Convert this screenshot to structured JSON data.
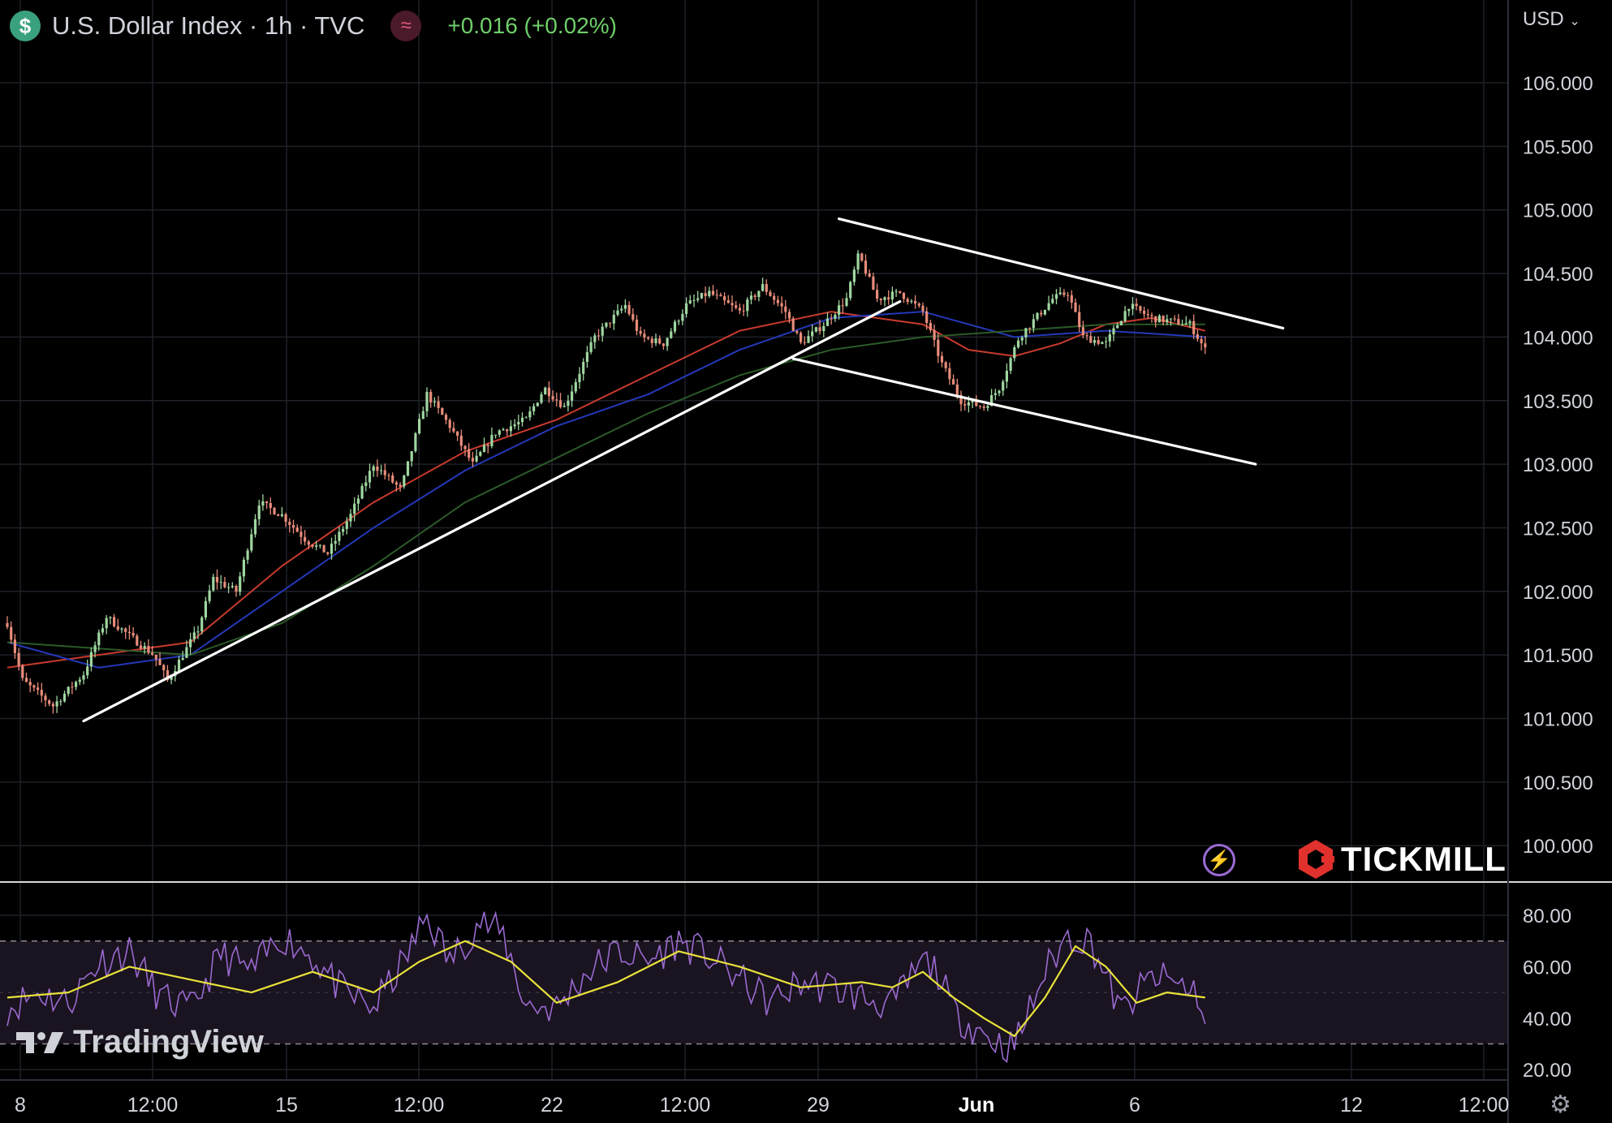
{
  "header": {
    "currency_icon": "dollar-coin-icon",
    "symbol_title": "U.S. Dollar Index · 1h · TVC",
    "indicator_icon": "wave-indicator-icon",
    "change": "+0.016 (+0.02%)"
  },
  "currency_selector": "USD",
  "colors": {
    "up": "#9fd6a0",
    "down": "#e88c7a",
    "ema_red": "#c83a2e",
    "ema_blue": "#2438b8",
    "ema_green": "#2b5a28",
    "rsi": "#9a6ad0",
    "rsi_ma": "#e8e23a",
    "change": "#6fcf6a"
  },
  "watermarks": {
    "broker": "TICKMILL",
    "platform": "TradingView"
  },
  "chart_data": {
    "type": "candlestick",
    "title": "U.S. Dollar Index · 1h · TVC",
    "x_ticks": [
      "8",
      "12:00",
      "15",
      "12:00",
      "22",
      "12:00",
      "29",
      "Jun",
      "6",
      "12",
      "12:00"
    ],
    "y_ticks": [
      "106.000",
      "105.500",
      "105.000",
      "104.500",
      "104.000",
      "103.500",
      "103.000",
      "102.500",
      "102.000",
      "101.500",
      "101.000",
      "100.500",
      "100.000"
    ],
    "ylim": [
      99.9,
      106.4
    ],
    "grid": true,
    "price_path": [
      [
        0,
        101.75
      ],
      [
        1,
        101.3
      ],
      [
        3,
        101.1
      ],
      [
        5,
        101.35
      ],
      [
        6.5,
        101.8
      ],
      [
        8,
        101.65
      ],
      [
        9.6,
        101.5
      ],
      [
        10.5,
        101.3
      ],
      [
        12.5,
        101.7
      ],
      [
        13.5,
        102.1
      ],
      [
        15,
        102.0
      ],
      [
        16.5,
        102.7
      ],
      [
        18,
        102.6
      ],
      [
        19.6,
        102.4
      ],
      [
        21,
        102.3
      ],
      [
        22.5,
        102.6
      ],
      [
        24,
        103.0
      ],
      [
        25.8,
        102.8
      ],
      [
        27.5,
        103.55
      ],
      [
        29,
        103.3
      ],
      [
        30.5,
        103.0
      ],
      [
        32,
        103.25
      ],
      [
        34,
        103.35
      ],
      [
        35.2,
        103.6
      ],
      [
        36.5,
        103.45
      ],
      [
        38.5,
        104.0
      ],
      [
        40.5,
        104.25
      ],
      [
        41.5,
        104.0
      ],
      [
        43,
        103.95
      ],
      [
        44.5,
        104.25
      ],
      [
        46,
        104.35
      ],
      [
        48,
        104.2
      ],
      [
        49.5,
        104.4
      ],
      [
        51,
        104.2
      ],
      [
        52,
        103.95
      ],
      [
        53.5,
        104.1
      ],
      [
        55,
        104.3
      ],
      [
        55.8,
        104.65
      ],
      [
        57,
        104.3
      ],
      [
        58.5,
        104.35
      ],
      [
        60,
        104.2
      ],
      [
        61.2,
        103.8
      ],
      [
        62.5,
        103.5
      ],
      [
        64,
        103.45
      ],
      [
        65,
        103.6
      ],
      [
        66.3,
        104.0
      ],
      [
        68.5,
        104.3
      ],
      [
        69.5,
        104.35
      ],
      [
        70.5,
        104.0
      ],
      [
        72,
        103.95
      ],
      [
        73.5,
        104.25
      ],
      [
        75,
        104.15
      ],
      [
        77.5,
        104.1
      ],
      [
        78.5,
        103.9
      ]
    ],
    "series": [
      {
        "name": "",
        "x": [
          0,
          6,
          12,
          18,
          24,
          30,
          36,
          42,
          48,
          54,
          60,
          63,
          66,
          69,
          72,
          75,
          78.5
        ],
        "values": [
          101.4,
          101.5,
          101.6,
          102.2,
          102.7,
          103.1,
          103.35,
          103.7,
          104.05,
          104.2,
          104.1,
          103.9,
          103.85,
          103.95,
          104.1,
          104.15,
          104.05
        ]
      },
      {
        "name": "",
        "x": [
          0,
          6,
          12,
          18,
          24,
          30,
          36,
          42,
          48,
          54,
          60,
          66,
          72,
          78.5
        ],
        "values": [
          101.6,
          101.4,
          101.5,
          102.0,
          102.5,
          102.95,
          103.3,
          103.55,
          103.9,
          104.15,
          104.2,
          104.0,
          104.05,
          104.0
        ]
      },
      {
        "name": "",
        "x": [
          0,
          6,
          12,
          18,
          24,
          30,
          36,
          42,
          48,
          54,
          60,
          66,
          72,
          78.5
        ],
        "values": [
          101.6,
          101.55,
          101.5,
          101.75,
          102.2,
          102.7,
          103.05,
          103.4,
          103.7,
          103.9,
          104.0,
          104.05,
          104.1,
          104.1
        ]
      }
    ],
    "trendlines": [
      {
        "from": [
          5,
          100.98
        ],
        "to": [
          58.5,
          104.28
        ]
      },
      {
        "from": [
          54.5,
          104.93
        ],
        "to": [
          83.6,
          104.07
        ]
      },
      {
        "from": [
          51.5,
          103.83
        ],
        "to": [
          81.8,
          103.0
        ]
      }
    ],
    "rsi": {
      "y_ticks": [
        "80.00",
        "60.00",
        "40.00",
        "20.00"
      ],
      "ylim": [
        18,
        88
      ],
      "band": [
        30,
        70
      ],
      "mid": 50,
      "path": [
        [
          0,
          44
        ],
        [
          2,
          50
        ],
        [
          4,
          46
        ],
        [
          6,
          62
        ],
        [
          8,
          66
        ],
        [
          10,
          48
        ],
        [
          12,
          43
        ],
        [
          14,
          65
        ],
        [
          16,
          58
        ],
        [
          18,
          72
        ],
        [
          20,
          64
        ],
        [
          22,
          50
        ],
        [
          24,
          44
        ],
        [
          26,
          62
        ],
        [
          27.5,
          80
        ],
        [
          29,
          62
        ],
        [
          31,
          78
        ],
        [
          32.5,
          72
        ],
        [
          34,
          45
        ],
        [
          36,
          44
        ],
        [
          38,
          58
        ],
        [
          40,
          66
        ],
        [
          42,
          62
        ],
        [
          44,
          70
        ],
        [
          46,
          64
        ],
        [
          48,
          55
        ],
        [
          50,
          46
        ],
        [
          52,
          54
        ],
        [
          54,
          52
        ],
        [
          56,
          48
        ],
        [
          58,
          45
        ],
        [
          60,
          62
        ],
        [
          61,
          58
        ],
        [
          62,
          42
        ],
        [
          63.5,
          36
        ],
        [
          65,
          30
        ],
        [
          66,
          29
        ],
        [
          68,
          58
        ],
        [
          69.5,
          72
        ],
        [
          71,
          70
        ],
        [
          73,
          42
        ],
        [
          75,
          56
        ],
        [
          76.5,
          54
        ],
        [
          78,
          50
        ],
        [
          78.5,
          36
        ]
      ],
      "ma_path": [
        [
          0,
          48
        ],
        [
          4,
          50
        ],
        [
          8,
          60
        ],
        [
          12,
          55
        ],
        [
          16,
          50
        ],
        [
          20,
          58
        ],
        [
          24,
          50
        ],
        [
          27,
          62
        ],
        [
          30,
          70
        ],
        [
          33,
          62
        ],
        [
          36,
          46
        ],
        [
          40,
          54
        ],
        [
          44,
          66
        ],
        [
          48,
          60
        ],
        [
          52,
          52
        ],
        [
          56,
          54
        ],
        [
          58,
          52
        ],
        [
          60,
          58
        ],
        [
          62,
          48
        ],
        [
          64,
          40
        ],
        [
          66,
          33
        ],
        [
          68,
          48
        ],
        [
          70,
          68
        ],
        [
          72,
          60
        ],
        [
          74,
          46
        ],
        [
          76,
          50
        ],
        [
          78.5,
          48
        ]
      ]
    }
  }
}
